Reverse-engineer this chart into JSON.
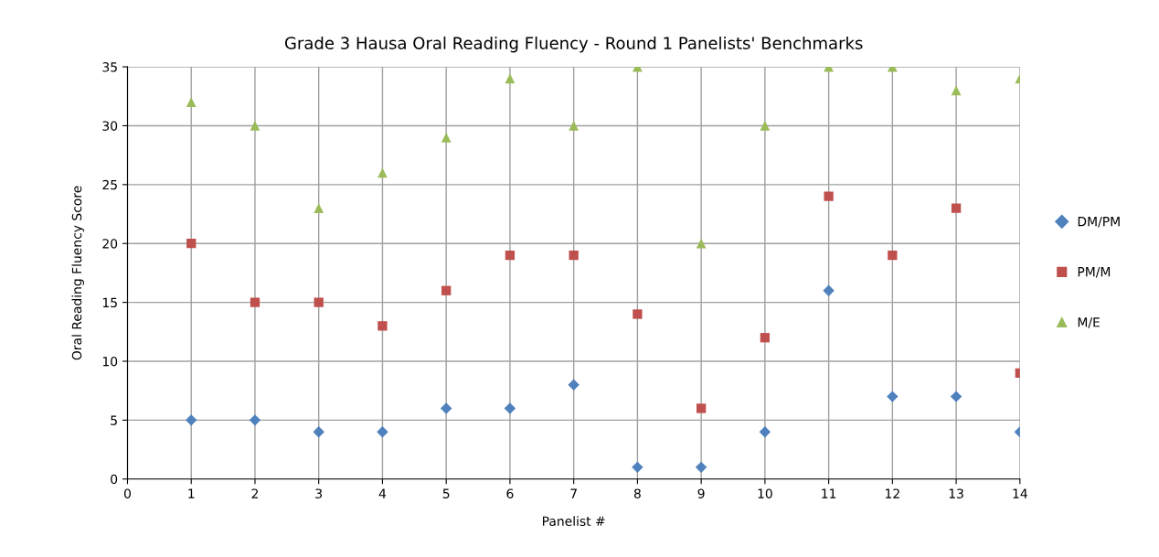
{
  "chart_data": {
    "type": "scatter",
    "title": "Grade 3 Hausa Oral Reading Fluency - Round 1 Panelists' Benchmarks",
    "xlabel": "Panelist #",
    "ylabel": "Oral Reading Fluency Score",
    "x": [
      1,
      2,
      3,
      4,
      5,
      6,
      7,
      8,
      9,
      10,
      11,
      12,
      13,
      14
    ],
    "series": [
      {
        "name": "DM/PM",
        "color": "#4f81bd",
        "marker": "diamond",
        "values": [
          5,
          5,
          4,
          4,
          6,
          6,
          8,
          1,
          1,
          4,
          16,
          7,
          7,
          4
        ]
      },
      {
        "name": "PM/M",
        "color": "#c0504d",
        "marker": "square",
        "values": [
          20,
          15,
          15,
          13,
          16,
          19,
          19,
          14,
          6,
          12,
          24,
          19,
          23,
          9
        ]
      },
      {
        "name": "M/E",
        "color": "#9bbb59",
        "marker": "triangle",
        "values": [
          32,
          30,
          23,
          26,
          29,
          34,
          30,
          35,
          20,
          30,
          35,
          35,
          33,
          34
        ]
      }
    ],
    "xlim": [
      0,
      14
    ],
    "xticks": [
      0,
      1,
      2,
      3,
      4,
      5,
      6,
      7,
      8,
      9,
      10,
      11,
      12,
      13,
      14
    ],
    "ylim": [
      0,
      35
    ],
    "yticks": [
      0,
      5,
      10,
      15,
      20,
      25,
      30,
      35
    ],
    "grid": true,
    "legend": "right"
  }
}
